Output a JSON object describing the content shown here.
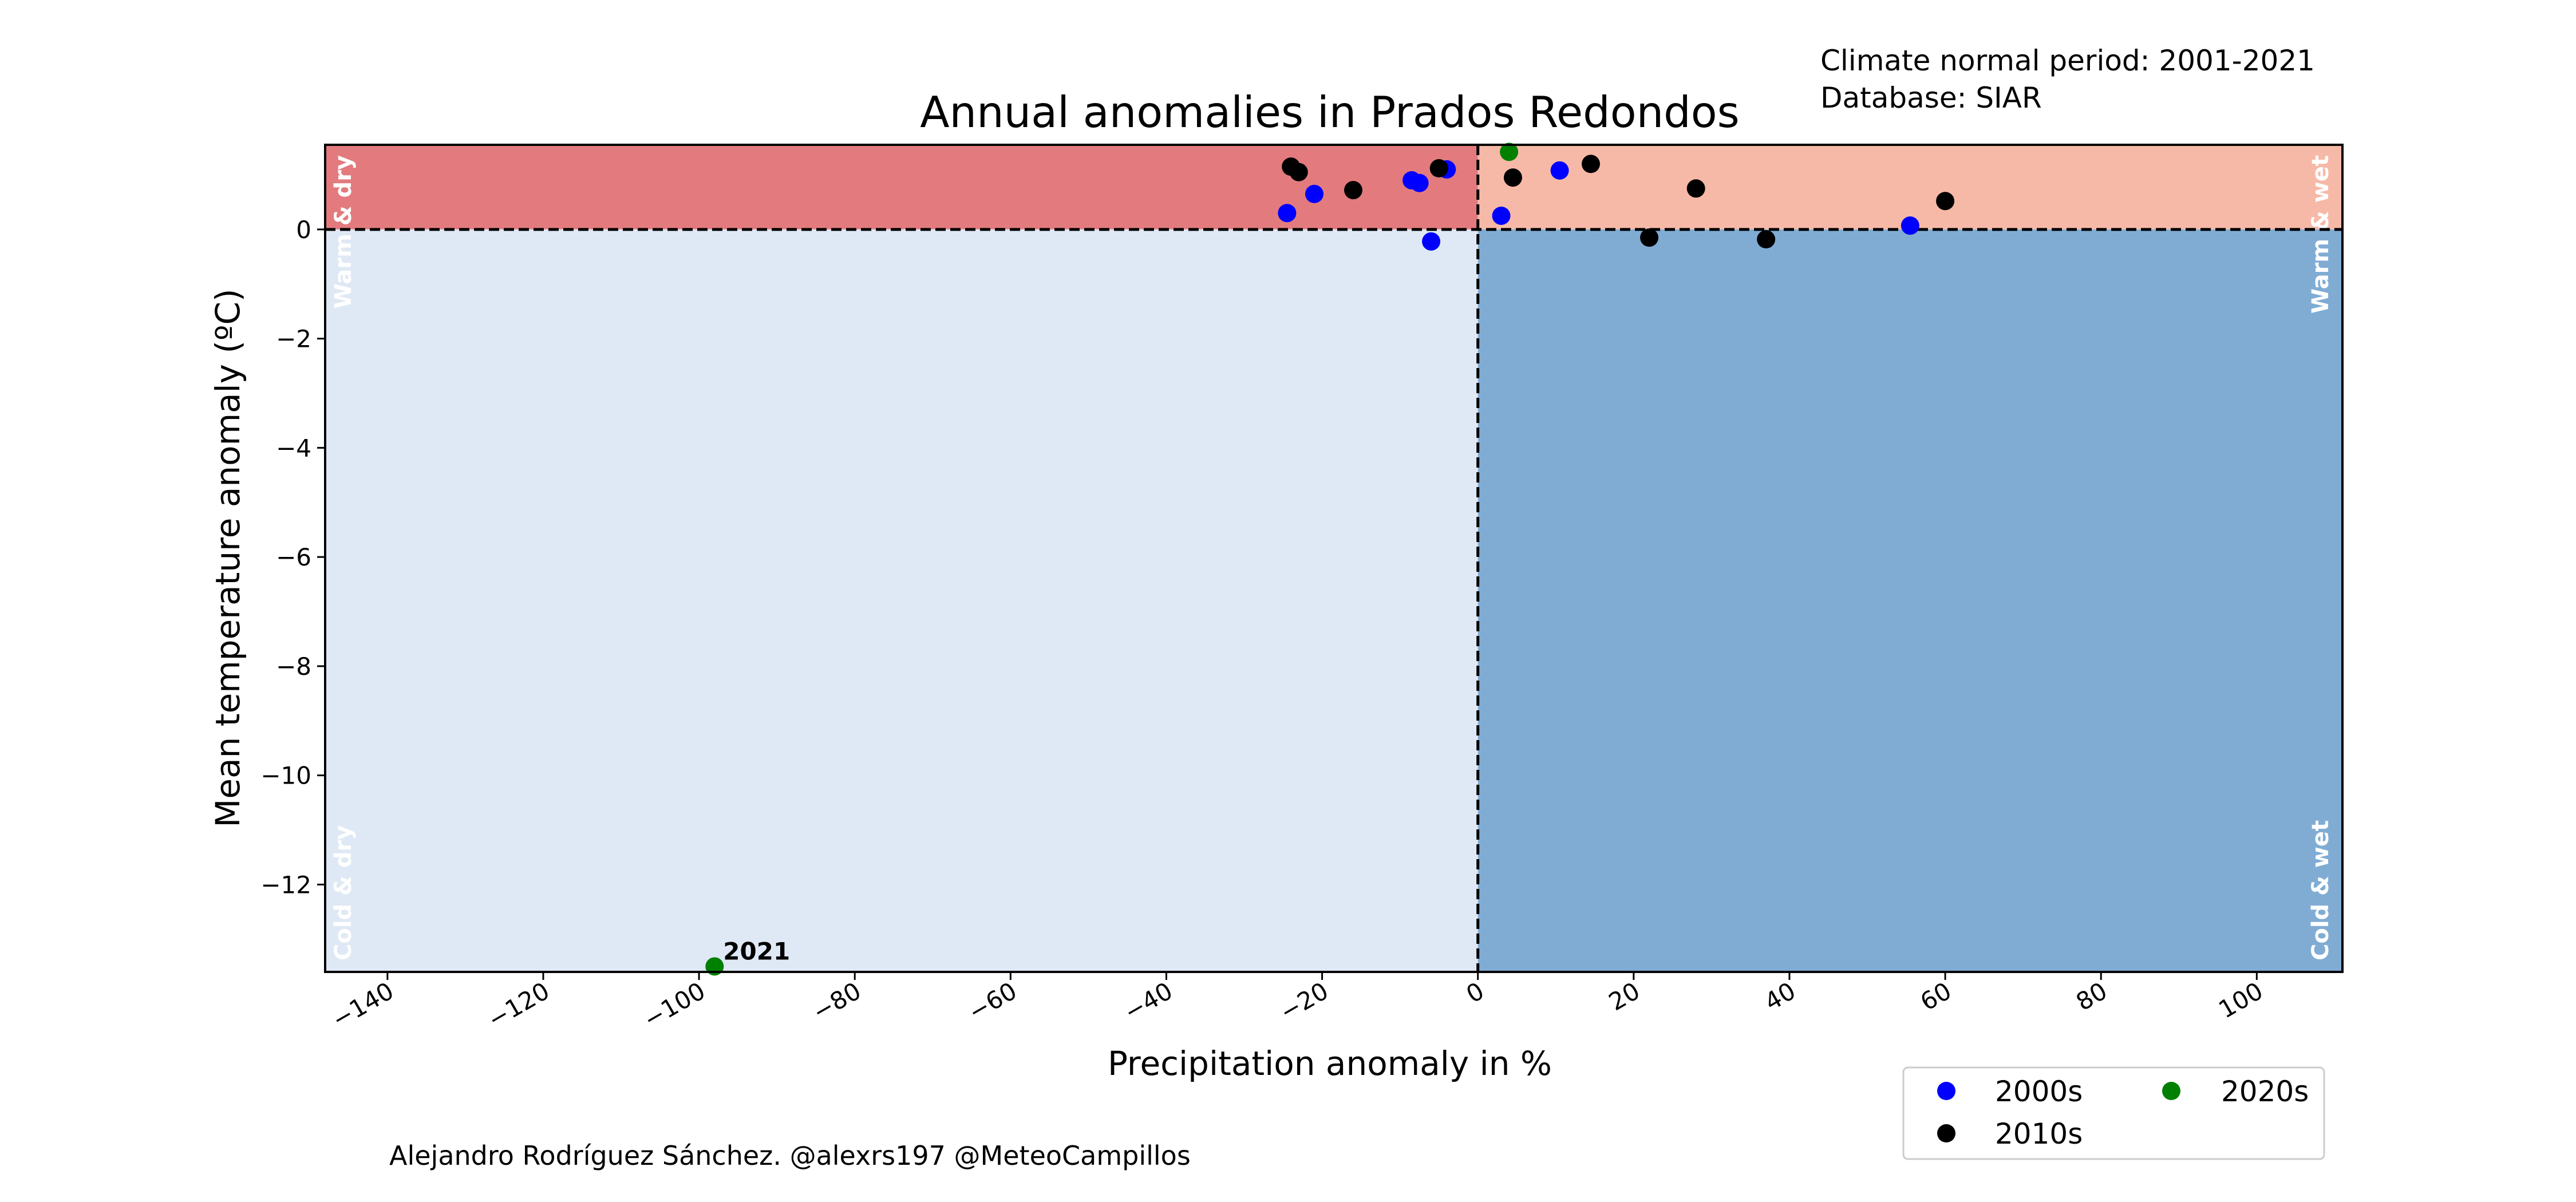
{
  "chart_data": {
    "type": "scatter",
    "title": "Annual anomalies in Prados Redondos",
    "info_lines": [
      "Climate normal period: 2001-2021",
      "Database: SIAR"
    ],
    "xlabel": "Precipitation anomaly in %",
    "ylabel": "Mean temperature anomaly (ºC)",
    "xlim": [
      -148,
      111
    ],
    "ylim": [
      -13.6,
      1.55
    ],
    "xticks": [
      -140,
      -120,
      -100,
      -80,
      -60,
      -40,
      -20,
      0,
      20,
      40,
      60,
      80,
      100
    ],
    "yticks": [
      -12,
      -10,
      -8,
      -6,
      -4,
      -2,
      0
    ],
    "grid": false,
    "legend_placement": "below-right",
    "quadrants": [
      {
        "label": "Warm & dry",
        "color": "#e37b7e"
      },
      {
        "label": "Warm & wet",
        "color": "#f7b9a7"
      },
      {
        "label": "Cold & dry",
        "color": "#dfe9f5"
      },
      {
        "label": "Cold & wet",
        "color": "#80acd4"
      }
    ],
    "series": [
      {
        "name": "2000s",
        "color": "#0000ff",
        "points": [
          {
            "x": -24.5,
            "y": 0.3
          },
          {
            "x": -21.0,
            "y": 0.65
          },
          {
            "x": -8.5,
            "y": 0.9
          },
          {
            "x": -7.5,
            "y": 0.85
          },
          {
            "x": -6.0,
            "y": -0.22
          },
          {
            "x": -4.0,
            "y": 1.1
          },
          {
            "x": 3.0,
            "y": 0.25
          },
          {
            "x": 10.5,
            "y": 1.08
          },
          {
            "x": 55.5,
            "y": 0.07
          }
        ]
      },
      {
        "name": "2010s",
        "color": "#000000",
        "points": [
          {
            "x": -24.0,
            "y": 1.15
          },
          {
            "x": -23.0,
            "y": 1.05
          },
          {
            "x": -16.0,
            "y": 0.72
          },
          {
            "x": -5.0,
            "y": 1.12
          },
          {
            "x": 4.5,
            "y": 0.95
          },
          {
            "x": 14.5,
            "y": 1.2
          },
          {
            "x": 22.0,
            "y": -0.15
          },
          {
            "x": 28.0,
            "y": 0.75
          },
          {
            "x": 37.0,
            "y": -0.18
          },
          {
            "x": 60.0,
            "y": 0.52
          }
        ]
      },
      {
        "name": "2020s",
        "color": "#008000",
        "points": [
          {
            "x": 4.0,
            "y": 1.42
          },
          {
            "x": -98.0,
            "y": -13.5,
            "label": "2021"
          }
        ]
      }
    ],
    "credit": "Alejandro Rodríguez Sánchez. @alexrs197 @MeteoCampillos"
  }
}
